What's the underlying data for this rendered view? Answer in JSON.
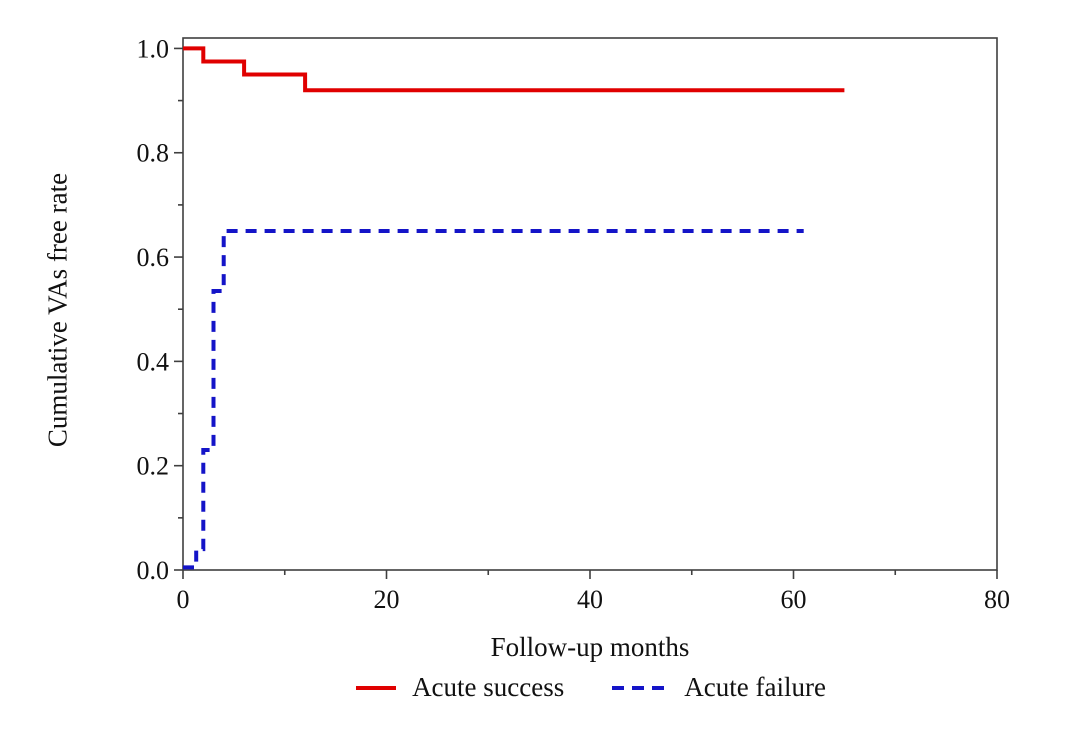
{
  "chart_data": {
    "type": "line",
    "subtype": "step_survival_km",
    "title": "",
    "xlabel": "Follow-up months",
    "ylabel": "Cumulative VAs free rate",
    "xlim": [
      0,
      80
    ],
    "ylim": [
      0,
      1.02
    ],
    "x_tick_values": [
      0,
      20,
      40,
      60,
      80
    ],
    "x_tick_labels": [
      "0",
      "20",
      "40",
      "60",
      "80"
    ],
    "x_minor_ticks": [
      10,
      30,
      50,
      70
    ],
    "y_tick_values": [
      0.0,
      0.2,
      0.4,
      0.6,
      0.8,
      1.0
    ],
    "y_tick_labels": [
      "0.0",
      "0.2",
      "0.4",
      "0.6",
      "0.8",
      "1.0"
    ],
    "y_minor_ticks": [
      0.1,
      0.3,
      0.5,
      0.7,
      0.9
    ],
    "grid": false,
    "legend_position": "bottom-center",
    "axis_color": "#3f3f3f",
    "text_color": "#111111",
    "background_color": "#ffffff",
    "series": [
      {
        "name": "Acute success",
        "color": "#e00000",
        "style": "solid",
        "points": [
          [
            0,
            1.0
          ],
          [
            2,
            1.0
          ],
          [
            2,
            0.975
          ],
          [
            6,
            0.975
          ],
          [
            6,
            0.95
          ],
          [
            12,
            0.95
          ],
          [
            12,
            0.92
          ],
          [
            65,
            0.92
          ]
        ]
      },
      {
        "name": "Acute failure",
        "color": "#1414c8",
        "style": "dashed",
        "points": [
          [
            0,
            0.005
          ],
          [
            1.3,
            0.005
          ],
          [
            1.3,
            0.04
          ],
          [
            2,
            0.04
          ],
          [
            2,
            0.23
          ],
          [
            3,
            0.23
          ],
          [
            3,
            0.535
          ],
          [
            4,
            0.535
          ],
          [
            4,
            0.65
          ],
          [
            61,
            0.65
          ]
        ]
      }
    ]
  }
}
